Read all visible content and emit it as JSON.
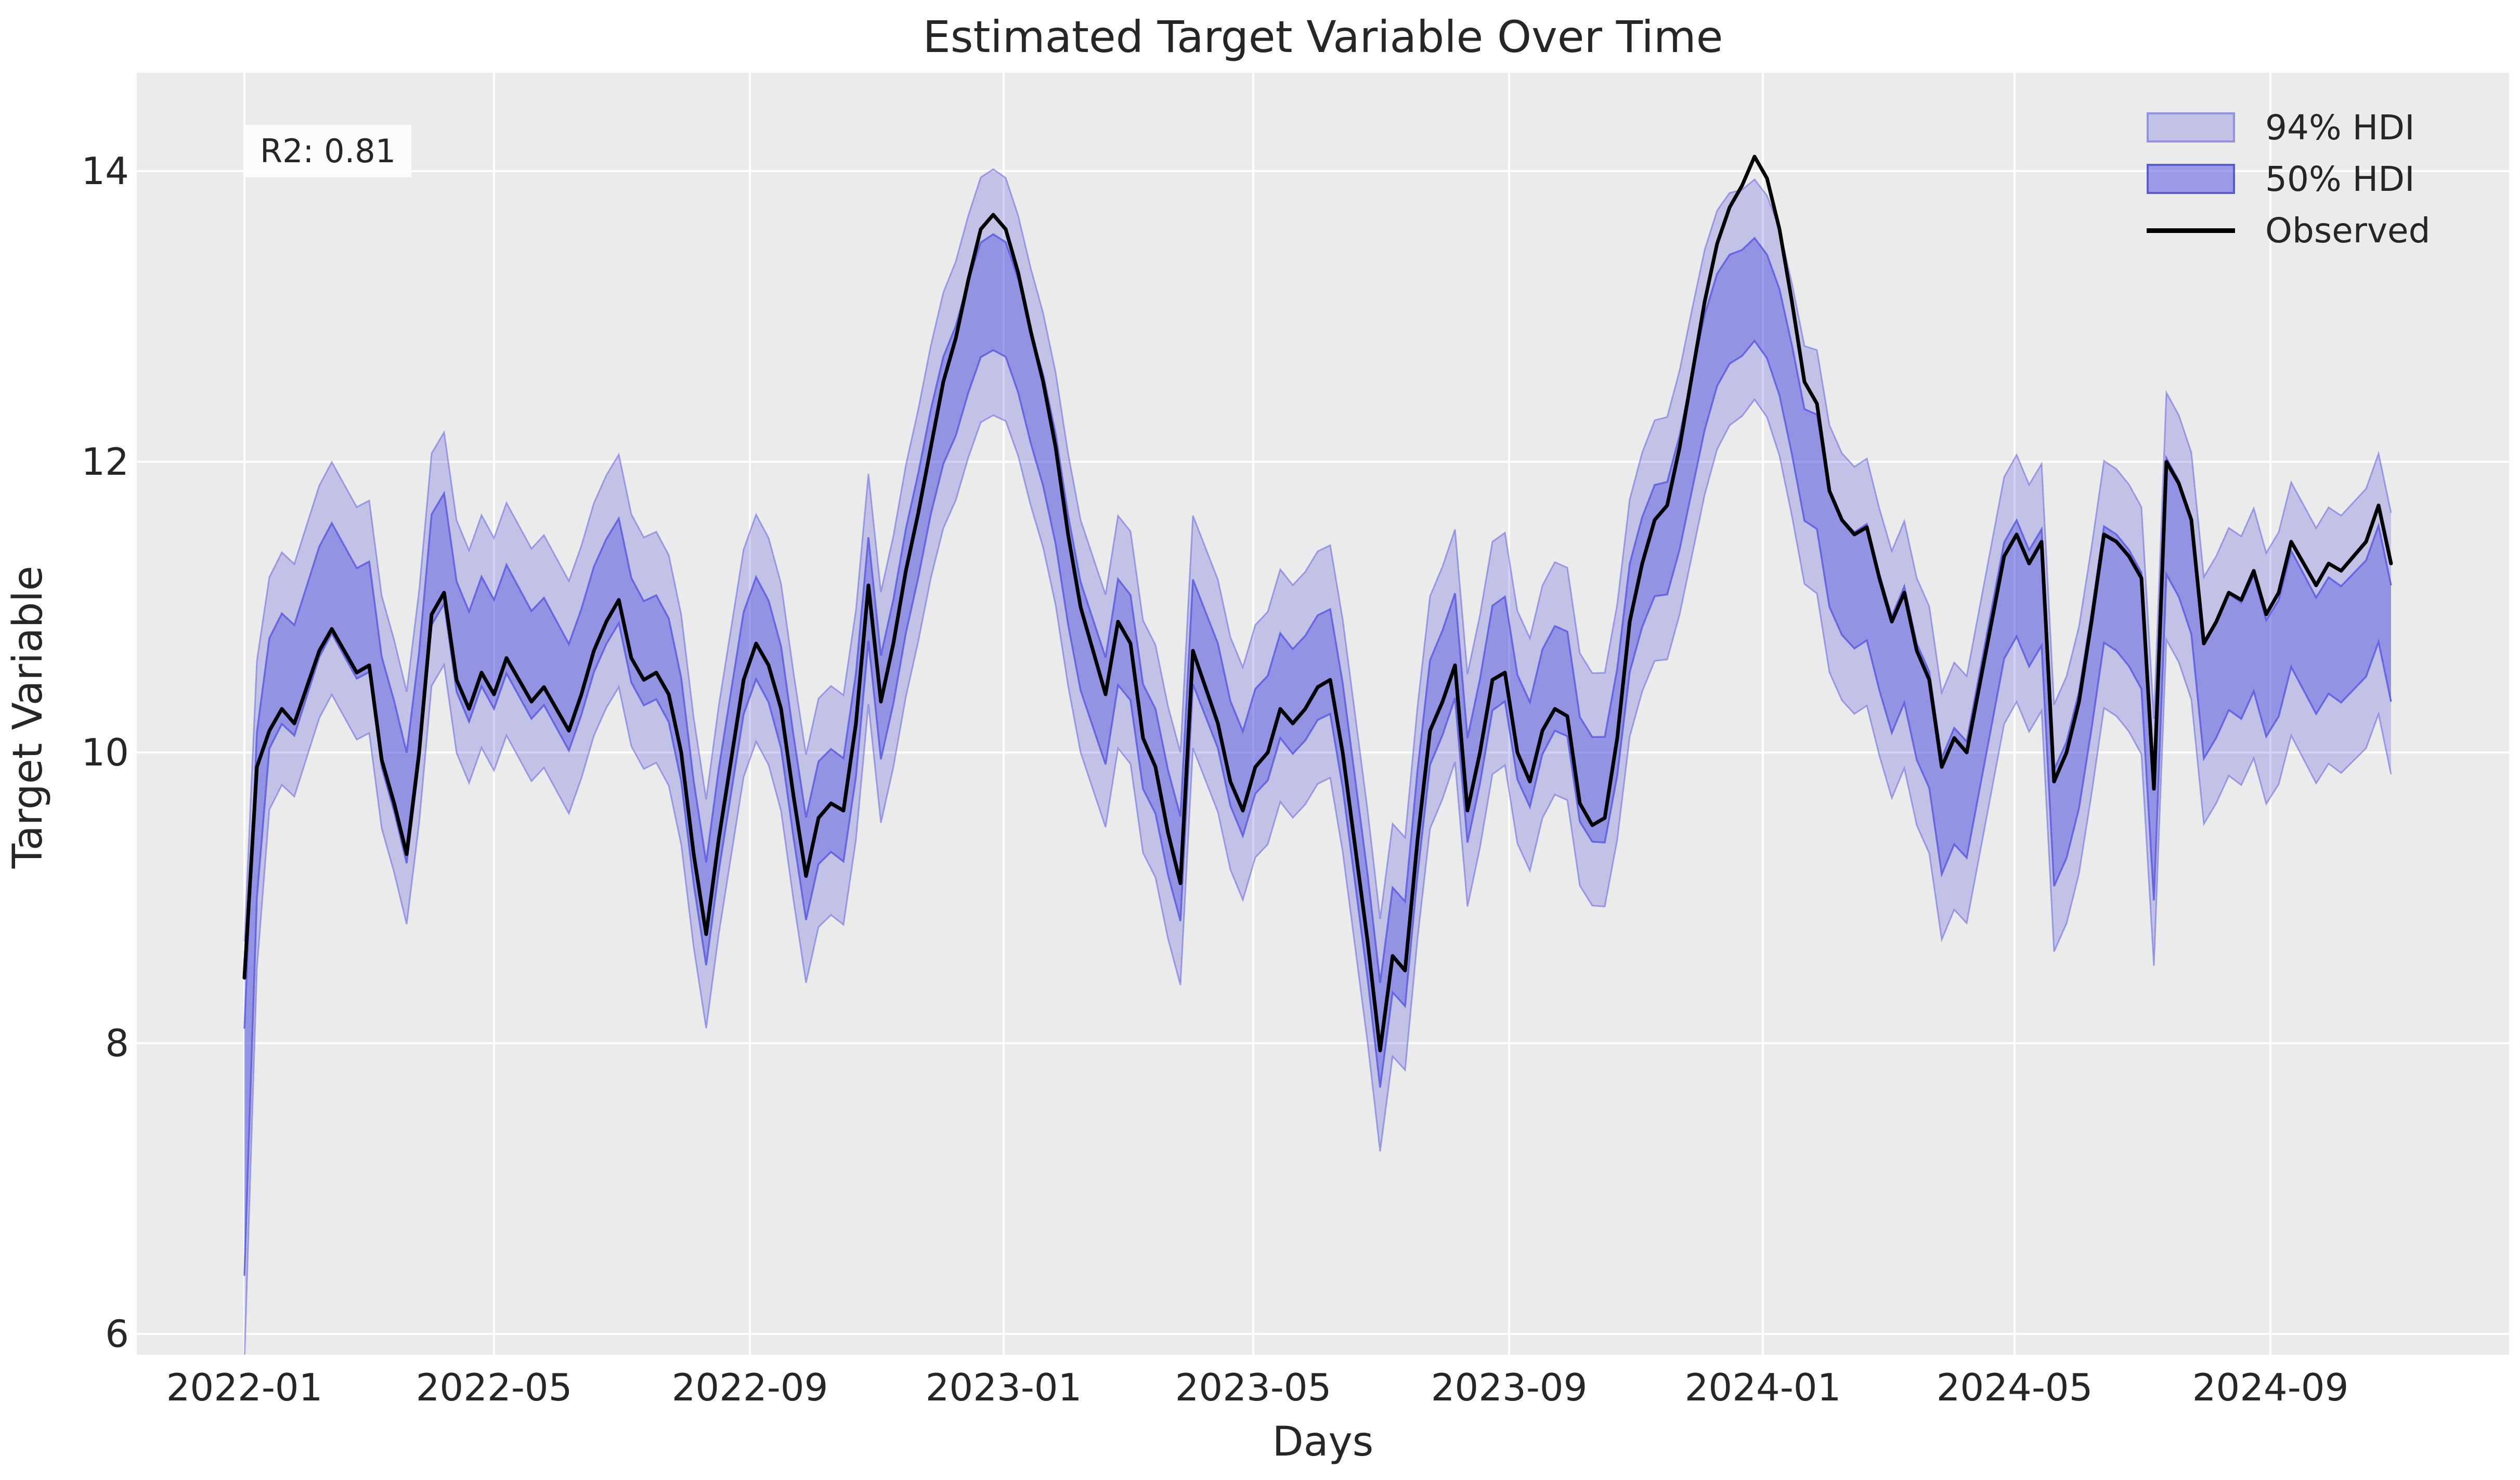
{
  "chart": {
    "title": "Estimated Target Variable Over Time",
    "xlabel": "Days",
    "ylabel": "Target Variable",
    "annotation": "R2: 0.81",
    "legend": [
      {
        "label": "94% HDI",
        "swatch": "hdi94-band-swatch"
      },
      {
        "label": "50% HDI",
        "swatch": "hdi50-band-swatch"
      },
      {
        "label": "Observed",
        "swatch": "observed-line-swatch"
      }
    ],
    "colors": {
      "figure_background": "#ffffff",
      "plot_background": "#ebebeb",
      "grid": "#ffffff",
      "observed_line": "#000000",
      "hdi_base": "#5a5ae0",
      "hdi94_fill_alpha": 0.28,
      "hdi50_fill_alpha": 0.45,
      "text": "#262626"
    }
  },
  "chart_data": {
    "type": "line",
    "title": "Estimated Target Variable Over Time",
    "xlabel": "Days",
    "ylabel": "Target Variable",
    "annotation_r2": 0.81,
    "legend_position": "upper right",
    "grid": true,
    "x_start_date": "2022-01-01",
    "x_step_days": 6,
    "x_tick_labels": [
      "2022-01",
      "2022-05",
      "2022-09",
      "2023-01",
      "2023-05",
      "2023-09",
      "2024-01",
      "2024-05",
      "2024-09"
    ],
    "x_tick_days": [
      0,
      120,
      243,
      365,
      485,
      608,
      730,
      851,
      974
    ],
    "y_ticks": [
      6,
      8,
      10,
      12,
      14
    ],
    "ylim": [
      5.87,
      14.67
    ],
    "series": [
      {
        "name": "Observed",
        "type": "line",
        "color": "#000000",
        "values": [
          8.45,
          9.9,
          10.15,
          10.3,
          10.2,
          10.45,
          10.7,
          10.85,
          10.7,
          10.55,
          10.6,
          9.95,
          9.65,
          9.3,
          10.0,
          10.95,
          11.1,
          10.5,
          10.3,
          10.55,
          10.4,
          10.65,
          10.5,
          10.35,
          10.45,
          10.3,
          10.15,
          10.4,
          10.7,
          10.9,
          11.05,
          10.65,
          10.5,
          10.55,
          10.4,
          10.0,
          9.3,
          8.75,
          9.4,
          9.95,
          10.5,
          10.75,
          10.6,
          10.3,
          9.7,
          9.15,
          9.55,
          9.65,
          9.6,
          10.2,
          11.15,
          10.35,
          10.75,
          11.25,
          11.65,
          12.1,
          12.55,
          12.85,
          13.25,
          13.6,
          13.7,
          13.6,
          13.3,
          12.9,
          12.55,
          12.1,
          11.5,
          11.0,
          10.7,
          10.4,
          10.9,
          10.75,
          10.1,
          9.9,
          9.45,
          9.1,
          10.7,
          10.45,
          10.2,
          9.8,
          9.6,
          9.9,
          10.0,
          10.3,
          10.2,
          10.3,
          10.45,
          10.5,
          10.0,
          9.35,
          8.7,
          7.95,
          8.6,
          8.5,
          9.4,
          10.15,
          10.35,
          10.6,
          9.6,
          10.0,
          10.5,
          10.55,
          10.0,
          9.8,
          10.15,
          10.3,
          10.25,
          9.65,
          9.5,
          9.55,
          10.1,
          10.9,
          11.3,
          11.6,
          11.7,
          12.1,
          12.6,
          13.1,
          13.5,
          13.75,
          13.9,
          14.1,
          13.95,
          13.6,
          13.1,
          12.55,
          12.4,
          11.8,
          11.6,
          11.5,
          11.55,
          11.2,
          10.9,
          11.1,
          10.7,
          10.5,
          9.9,
          10.1,
          10.0,
          10.45,
          10.9,
          11.35,
          11.5,
          11.3,
          11.45,
          9.8,
          10.0,
          10.35,
          10.9,
          11.5,
          11.45,
          11.35,
          11.2,
          9.75,
          12.0,
          11.85,
          11.6,
          10.75,
          10.9,
          11.1,
          11.05,
          11.25,
          10.95,
          11.1,
          11.45,
          11.3,
          11.15,
          11.3,
          11.25,
          11.35,
          11.45,
          11.7,
          11.3
        ]
      },
      {
        "name": "94% HDI",
        "type": "band",
        "derived_from": "band_model"
      },
      {
        "name": "50% HDI",
        "type": "band",
        "derived_from": "band_model"
      }
    ],
    "band_model": {
      "note": "HDI band edges read off the plot, relative to Observed: edge = observed + bias ± half_width, linearly interpolated between keyframe days",
      "keyframe_days": [
        0,
        10,
        40,
        100,
        180,
        250,
        330,
        358,
        388,
        430,
        470,
        540,
        600,
        650,
        700,
        728,
        760,
        850,
        950,
        1032
      ],
      "bias": [
        -1.2,
        0.25,
        0.35,
        0.3,
        0.2,
        0.1,
        -0.1,
        -0.55,
        -0.3,
        0.0,
        0.2,
        0.1,
        0.15,
        0.25,
        -0.45,
        -0.95,
        -0.4,
        -0.3,
        -0.4,
        -0.55
      ],
      "half_width_94": [
        1.45,
        0.8,
        0.8,
        0.8,
        0.8,
        0.78,
        0.8,
        0.85,
        0.8,
        0.8,
        0.8,
        0.8,
        0.8,
        0.8,
        0.85,
        0.75,
        0.85,
        0.85,
        0.85,
        0.9
      ],
      "half_width_50": [
        0.85,
        0.38,
        0.38,
        0.38,
        0.36,
        0.35,
        0.36,
        0.4,
        0.38,
        0.36,
        0.36,
        0.36,
        0.36,
        0.36,
        0.4,
        0.35,
        0.4,
        0.4,
        0.4,
        0.4
      ]
    }
  }
}
